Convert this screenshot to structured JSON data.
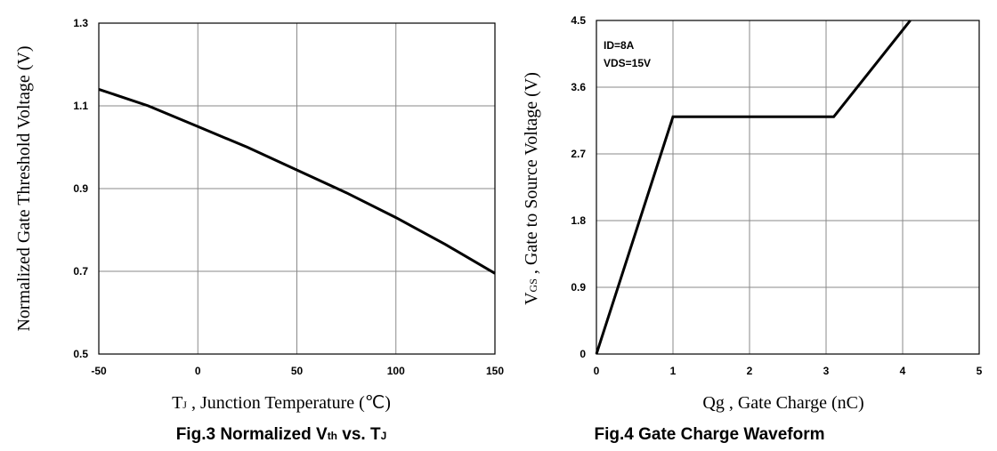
{
  "chart_data": [
    {
      "type": "line",
      "xlabel": {
        "main": "T",
        "sub": "J",
        "rest": " , Junction Temperature (℃)"
      },
      "ylabel": "Normalized Gate Threshold Voltage (V)",
      "caption": {
        "pre": "Fig.3  Normalized V",
        "sub1": "th",
        "mid": " vs. T",
        "sub2": "J"
      },
      "xlim": [
        -50,
        150
      ],
      "ylim": [
        0.5,
        1.3
      ],
      "xticks": [
        "-50",
        "0",
        "50",
        "100",
        "150"
      ],
      "yticks": [
        "0.5",
        "0.7",
        "0.9",
        "1.1",
        "1.3"
      ],
      "grid": true,
      "series": [
        {
          "x": [
            -50,
            -25,
            0,
            25,
            50,
            75,
            100,
            125,
            150
          ],
          "y": [
            1.14,
            1.1,
            1.05,
            1.0,
            0.945,
            0.89,
            0.83,
            0.765,
            0.695
          ]
        }
      ]
    },
    {
      "type": "line",
      "xlabel": "Qg , Gate Charge (nC)",
      "ylabel": {
        "main": "V",
        "sub": "GS",
        "rest": " , Gate to Source Voltage (V)"
      },
      "caption": "Fig.4  Gate Charge Waveform",
      "annotations": [
        "ID=8A",
        "VDS=15V"
      ],
      "xlim": [
        0,
        5
      ],
      "ylim": [
        0,
        4.5
      ],
      "xticks": [
        "0",
        "1",
        "2",
        "3",
        "4",
        "5"
      ],
      "yticks": [
        "0",
        "0.9",
        "1.8",
        "2.7",
        "3.6",
        "4.5"
      ],
      "grid": true,
      "series": [
        {
          "x": [
            0,
            1.0,
            3.1,
            4.1
          ],
          "y": [
            0,
            3.2,
            3.2,
            4.5
          ]
        }
      ]
    }
  ]
}
